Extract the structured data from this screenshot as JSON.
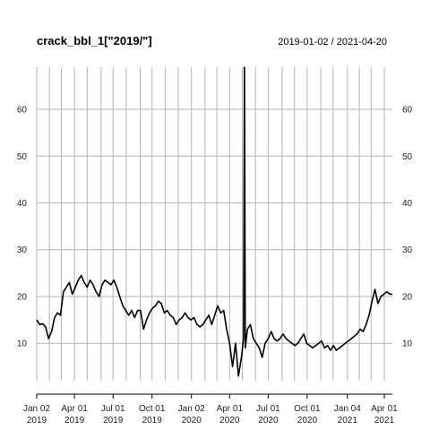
{
  "chart_data": {
    "type": "line",
    "title": "crack_bbl_1[\"2019/\"]",
    "date_range": "2019-01-02 / 2021-04-20",
    "xlabel": "",
    "ylabel": "",
    "ylim": [
      2,
      69
    ],
    "xlim": [
      "2019-01-02",
      "2021-04-20"
    ],
    "y_ticks": [
      10,
      20,
      30,
      40,
      50,
      60
    ],
    "grid": true,
    "x_ticks": [
      {
        "date": "2019-01-02",
        "line1": "Jan 02",
        "line2": "2019"
      },
      {
        "date": "2019-04-01",
        "line1": "Apr 01",
        "line2": "2019"
      },
      {
        "date": "2019-07-01",
        "line1": "Jul 01",
        "line2": "2019"
      },
      {
        "date": "2019-10-01",
        "line1": "Oct 01",
        "line2": "2019"
      },
      {
        "date": "2020-01-02",
        "line1": "Jan 02",
        "line2": "2020"
      },
      {
        "date": "2020-04-01",
        "line1": "Apr 01",
        "line2": "2020"
      },
      {
        "date": "2020-07-01",
        "line1": "Jul 01",
        "line2": "2020"
      },
      {
        "date": "2020-10-01",
        "line1": "Oct 01",
        "line2": "2020"
      },
      {
        "date": "2021-01-04",
        "line1": "Jan 04",
        "line2": "2021"
      },
      {
        "date": "2021-04-01",
        "line1": "Apr 01",
        "line2": "2021"
      }
    ],
    "x_gridlines": [
      "2019-01-02",
      "2019-02-01",
      "2019-03-01",
      "2019-04-01",
      "2019-05-01",
      "2019-06-03",
      "2019-07-01",
      "2019-08-01",
      "2019-09-03",
      "2019-10-01",
      "2019-11-01",
      "2019-12-02",
      "2020-01-02",
      "2020-02-03",
      "2020-03-02",
      "2020-04-01",
      "2020-05-01",
      "2020-06-01",
      "2020-07-01",
      "2020-08-03",
      "2020-09-01",
      "2020-10-01",
      "2020-11-02",
      "2020-12-01",
      "2021-01-04",
      "2021-02-01",
      "2021-03-01",
      "2021-04-01"
    ],
    "series": [
      {
        "color": "#000000",
        "x": [
          "2019-01-02",
          "2019-01-09",
          "2019-01-16",
          "2019-01-23",
          "2019-01-30",
          "2019-02-06",
          "2019-02-13",
          "2019-02-20",
          "2019-02-27",
          "2019-03-06",
          "2019-03-13",
          "2019-03-20",
          "2019-03-27",
          "2019-04-03",
          "2019-04-10",
          "2019-04-17",
          "2019-04-24",
          "2019-05-01",
          "2019-05-08",
          "2019-05-15",
          "2019-05-22",
          "2019-05-29",
          "2019-06-05",
          "2019-06-12",
          "2019-06-19",
          "2019-06-26",
          "2019-07-03",
          "2019-07-10",
          "2019-07-17",
          "2019-07-24",
          "2019-07-31",
          "2019-08-07",
          "2019-08-14",
          "2019-08-21",
          "2019-08-28",
          "2019-09-04",
          "2019-09-11",
          "2019-09-18",
          "2019-09-25",
          "2019-10-02",
          "2019-10-09",
          "2019-10-16",
          "2019-10-23",
          "2019-10-30",
          "2019-11-06",
          "2019-11-13",
          "2019-11-20",
          "2019-11-27",
          "2019-12-04",
          "2019-12-11",
          "2019-12-18",
          "2019-12-25",
          "2020-01-01",
          "2020-01-08",
          "2020-01-15",
          "2020-01-22",
          "2020-01-29",
          "2020-02-05",
          "2020-02-12",
          "2020-02-19",
          "2020-02-26",
          "2020-03-04",
          "2020-03-11",
          "2020-03-18",
          "2020-03-25",
          "2020-04-01",
          "2020-04-08",
          "2020-04-15",
          "2020-04-22",
          "2020-04-29",
          "2020-05-04",
          "2020-05-06",
          "2020-05-08",
          "2020-05-13",
          "2020-05-20",
          "2020-05-27",
          "2020-06-03",
          "2020-06-10",
          "2020-06-17",
          "2020-06-24",
          "2020-07-01",
          "2020-07-08",
          "2020-07-15",
          "2020-07-22",
          "2020-07-29",
          "2020-08-05",
          "2020-08-12",
          "2020-08-19",
          "2020-08-26",
          "2020-09-02",
          "2020-09-09",
          "2020-09-16",
          "2020-09-23",
          "2020-09-30",
          "2020-10-07",
          "2020-10-14",
          "2020-10-21",
          "2020-10-28",
          "2020-11-04",
          "2020-11-11",
          "2020-11-18",
          "2020-11-25",
          "2020-12-02",
          "2020-12-09",
          "2020-12-16",
          "2020-12-23",
          "2020-12-30",
          "2021-01-06",
          "2021-01-13",
          "2021-01-20",
          "2021-01-27",
          "2021-02-03",
          "2021-02-10",
          "2021-02-17",
          "2021-02-24",
          "2021-03-03",
          "2021-03-10",
          "2021-03-17",
          "2021-03-24",
          "2021-03-31",
          "2021-04-07",
          "2021-04-14",
          "2021-04-20"
        ],
        "values": [
          15,
          14,
          14.2,
          13.5,
          11,
          12.5,
          15.5,
          16.5,
          16,
          21,
          22,
          23,
          20.5,
          22,
          23.5,
          24.5,
          23,
          22,
          23.5,
          22.5,
          21,
          20,
          22.5,
          23.5,
          23,
          22.5,
          23.5,
          22,
          20,
          18,
          17,
          16,
          17,
          15.5,
          17,
          17,
          13,
          15,
          16.5,
          17.5,
          18,
          19,
          18.5,
          16.5,
          17,
          16,
          15.5,
          14,
          15,
          15.5,
          16.5,
          15.5,
          15,
          15.5,
          14,
          13.5,
          14,
          15,
          16,
          14,
          16,
          18,
          16.5,
          17,
          13,
          10,
          5,
          10,
          3,
          7,
          11,
          69,
          9,
          13,
          14,
          11,
          10,
          9,
          7,
          10,
          11,
          12.5,
          11,
          10.5,
          11,
          12,
          11,
          10.5,
          10,
          9.5,
          10,
          11,
          12,
          10,
          9.5,
          9,
          9.5,
          10,
          10.5,
          9,
          9.5,
          8.5,
          9.5,
          8.5,
          9,
          9.5,
          10,
          10.5,
          11,
          11.5,
          12,
          13,
          12.5,
          14,
          16,
          19,
          21.5,
          18.5,
          20,
          20.5,
          21,
          20.5,
          20.5
        ]
      }
    ]
  }
}
